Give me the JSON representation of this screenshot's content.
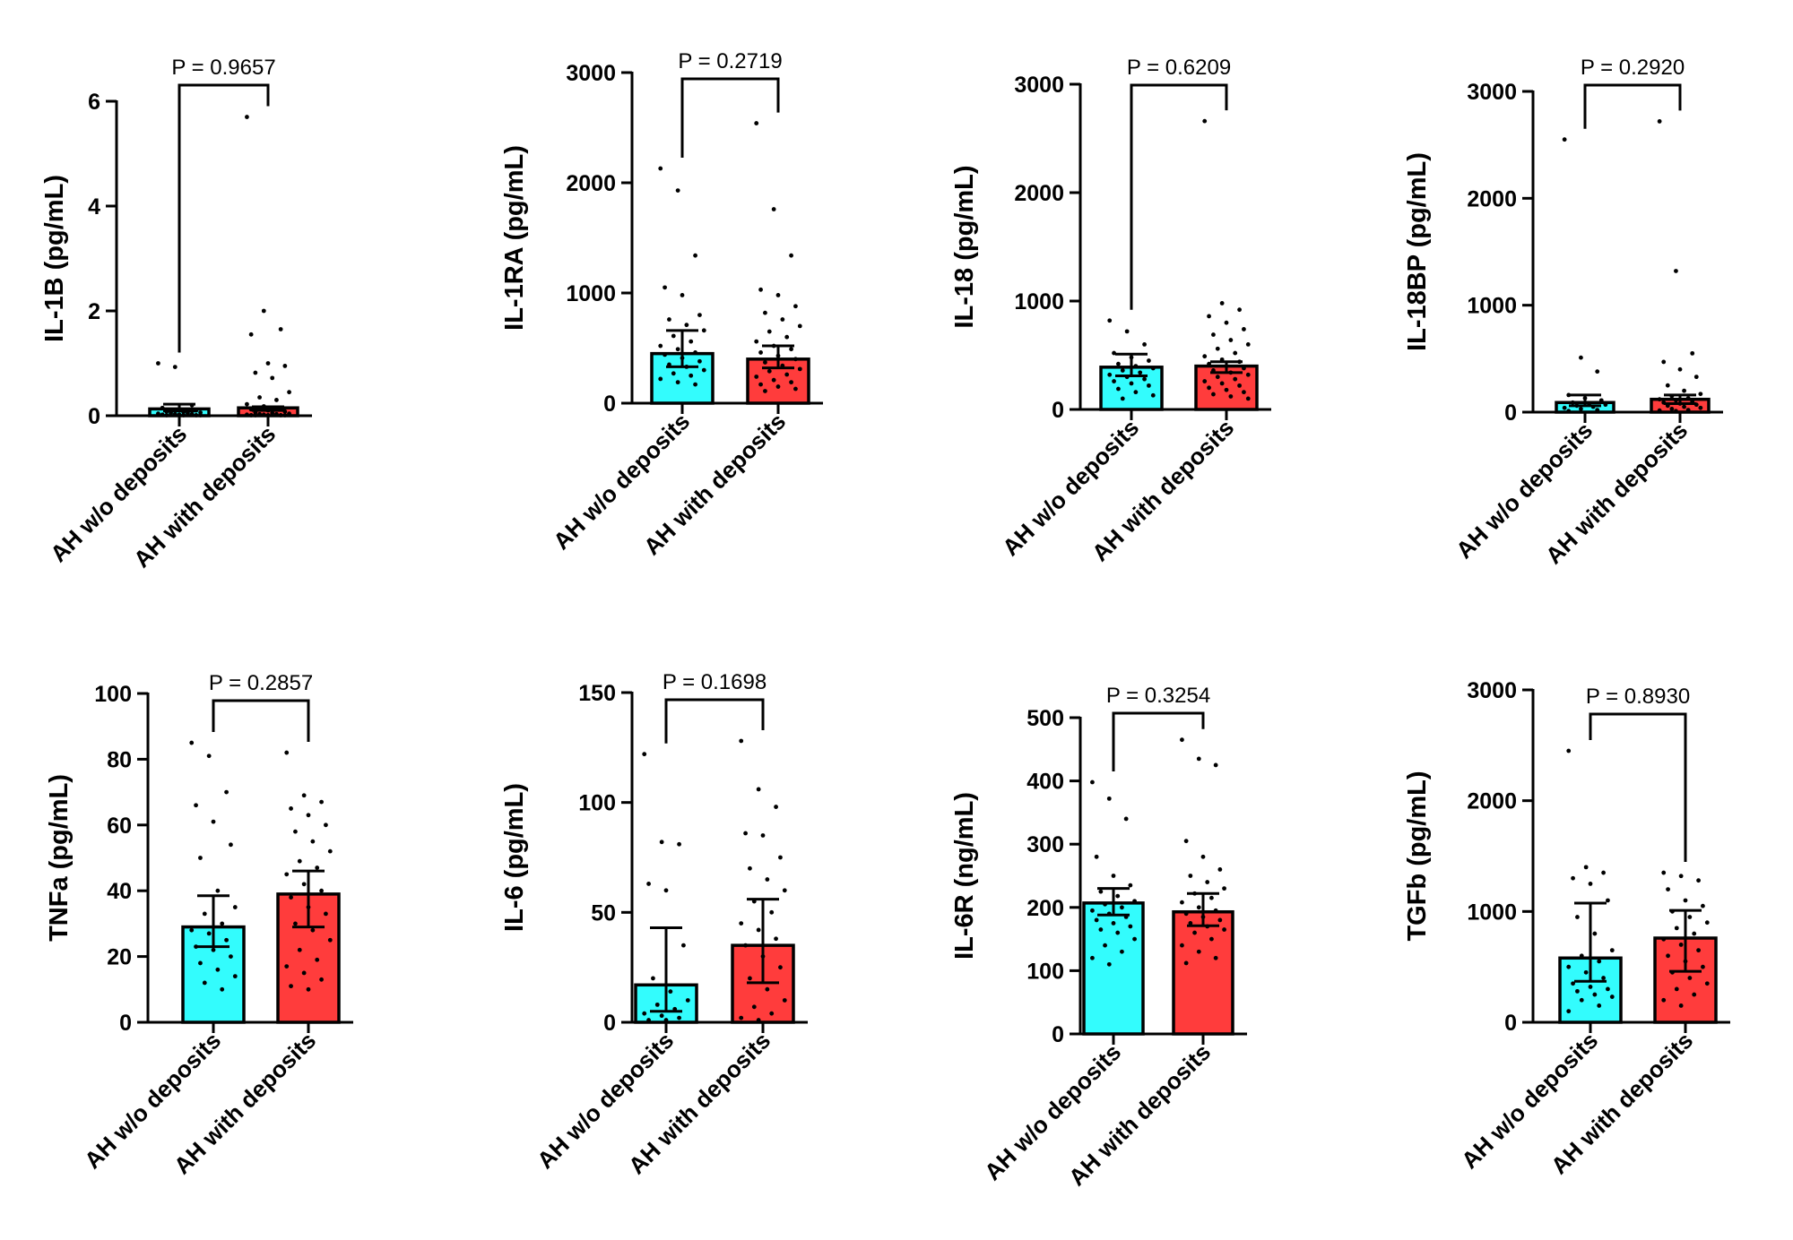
{
  "colors": {
    "without": "#33fcfd",
    "with": "#ff3c3c",
    "stroke": "#000000"
  },
  "categories": [
    "AH w/o deposits",
    "AH with deposits"
  ],
  "chart_data": [
    {
      "type": "bar",
      "title": "",
      "xlabel": "",
      "ylabel": "IL-1B (pg/mL)",
      "categories": [
        "AH w/o deposits",
        "AH with deposits"
      ],
      "values": [
        0.13,
        0.15
      ],
      "error_low": [
        0.09,
        0.1
      ],
      "error_high": [
        0.22,
        0.17
      ],
      "ylim": [
        0,
        6
      ],
      "yticks": [
        "0",
        "2",
        "4",
        "6"
      ],
      "ytick_values": [
        0,
        2,
        4,
        6
      ],
      "p_value": "P = 0.9657",
      "points": [
        [
          1.0,
          0.93,
          0.2,
          0.15,
          0.12,
          0.1,
          0.08,
          0.07,
          0.06,
          0.05,
          0.05,
          0.04,
          0.03,
          0.03,
          0.02,
          0.02,
          0.01,
          0.01,
          0.01,
          0.01
        ],
        [
          5.7,
          2.0,
          1.65,
          1.55,
          1.0,
          0.95,
          0.82,
          0.72,
          0.45,
          0.35,
          0.3,
          0.22,
          0.18,
          0.15,
          0.12,
          0.1,
          0.08,
          0.06,
          0.05,
          0.04,
          0.03,
          0.03,
          0.02,
          0.02,
          0.01,
          0.01,
          0.01,
          0.01,
          0.01
        ]
      ]
    },
    {
      "type": "bar",
      "title": "",
      "xlabel": "",
      "ylabel": "IL-1RA (pg/mL)",
      "categories": [
        "AH w/o deposits",
        "AH with deposits"
      ],
      "values": [
        450,
        400
      ],
      "error_low": [
        330,
        320
      ],
      "error_high": [
        660,
        520
      ],
      "ylim": [
        0,
        3000
      ],
      "yticks": [
        "0",
        "1000",
        "2000",
        "3000"
      ],
      "ytick_values": [
        0,
        1000,
        2000,
        3000
      ],
      "p_value": "P = 0.2719",
      "points": [
        [
          2130,
          1930,
          1340,
          1050,
          980,
          800,
          760,
          710,
          660,
          610,
          560,
          520,
          490,
          460,
          440,
          410,
          380,
          350,
          330,
          300,
          270,
          250,
          220,
          190,
          170
        ],
        [
          2540,
          1760,
          1340,
          1030,
          980,
          880,
          820,
          760,
          700,
          650,
          600,
          560,
          520,
          490,
          460,
          430,
          400,
          370,
          340,
          310,
          290,
          260,
          240,
          210,
          190,
          170,
          150,
          130,
          110
        ]
      ]
    },
    {
      "type": "bar",
      "title": "",
      "xlabel": "",
      "ylabel": "IL-18 (pg/mL)",
      "categories": [
        "AH w/o deposits",
        "AH with deposits"
      ],
      "values": [
        390,
        400
      ],
      "error_low": [
        310,
        340
      ],
      "error_high": [
        510,
        440
      ],
      "ylim": [
        0,
        3000
      ],
      "yticks": [
        "0",
        "1000",
        "2000",
        "3000"
      ],
      "ytick_values": [
        0,
        1000,
        2000,
        3000
      ],
      "p_value": "P = 0.6209",
      "points": [
        [
          820,
          720,
          600,
          520,
          480,
          450,
          420,
          400,
          380,
          360,
          340,
          320,
          300,
          280,
          260,
          240,
          220,
          190,
          160,
          130,
          100
        ],
        [
          2660,
          980,
          920,
          860,
          800,
          740,
          690,
          640,
          600,
          560,
          520,
          490,
          460,
          440,
          420,
          400,
          380,
          360,
          340,
          320,
          300,
          280,
          260,
          240,
          220,
          200,
          180,
          160,
          140,
          120,
          100
        ]
      ]
    },
    {
      "type": "bar",
      "title": "",
      "xlabel": "",
      "ylabel": "IL-18BP (pg/mL)",
      "categories": [
        "AH w/o deposits",
        "AH with deposits"
      ],
      "values": [
        90,
        120
      ],
      "error_low": [
        60,
        80
      ],
      "error_high": [
        160,
        160
      ],
      "ylim": [
        0,
        3000
      ],
      "yticks": [
        "0",
        "1000",
        "2000",
        "3000"
      ],
      "ytick_values": [
        0,
        1000,
        2000,
        3000
      ],
      "p_value": "P = 0.2920",
      "points": [
        [
          2550,
          510,
          380,
          160,
          130,
          110,
          90,
          80,
          70,
          60,
          50,
          40,
          30,
          20,
          10
        ],
        [
          2720,
          1320,
          550,
          470,
          400,
          330,
          250,
          200,
          170,
          150,
          130,
          120,
          110,
          100,
          90,
          80,
          70,
          60,
          50,
          40,
          30,
          20,
          15,
          10
        ]
      ]
    },
    {
      "type": "bar",
      "title": "",
      "xlabel": "",
      "ylabel": "TNFa (pg/mL)",
      "categories": [
        "AH w/o deposits",
        "AH with deposits"
      ],
      "values": [
        29,
        39
      ],
      "error_low": [
        23,
        29
      ],
      "error_high": [
        38.5,
        46
      ],
      "ylim": [
        0,
        100
      ],
      "yticks": [
        "0",
        "20",
        "40",
        "60",
        "80",
        "100"
      ],
      "ytick_values": [
        0,
        20,
        40,
        60,
        80,
        100
      ],
      "p_value": "P = 0.2857",
      "points": [
        [
          85,
          81,
          70,
          66,
          61,
          54,
          50,
          40,
          35,
          33,
          30,
          28,
          27,
          25,
          23,
          22,
          20,
          18,
          16,
          14,
          12,
          10
        ],
        [
          82,
          69,
          67,
          65,
          63,
          60,
          58,
          55,
          52,
          49,
          47,
          45,
          42,
          40,
          38,
          35,
          33,
          30,
          28,
          25,
          22,
          19,
          17,
          15,
          13,
          11,
          10
        ]
      ]
    },
    {
      "type": "bar",
      "title": "",
      "xlabel": "",
      "ylabel": "IL-6 (pg/mL)",
      "categories": [
        "AH w/o deposits",
        "AH with deposits"
      ],
      "values": [
        17,
        35
      ],
      "error_low": [
        5,
        18
      ],
      "error_high": [
        43,
        56
      ],
      "ylim": [
        0,
        150
      ],
      "yticks": [
        "0",
        "50",
        "100",
        "150"
      ],
      "ytick_values": [
        0,
        50,
        100,
        150
      ],
      "p_value": "P = 0.1698",
      "points": [
        [
          122,
          82,
          81,
          63,
          60,
          35,
          20,
          14,
          10,
          8,
          6,
          4,
          3,
          2,
          1,
          1
        ],
        [
          128,
          106,
          98,
          86,
          85,
          75,
          70,
          65,
          60,
          55,
          50,
          45,
          42,
          38,
          35,
          30,
          25,
          20,
          15,
          10,
          7,
          4,
          2,
          1
        ]
      ]
    },
    {
      "type": "bar",
      "title": "",
      "xlabel": "",
      "ylabel": "IL-6R (ng/mL)",
      "categories": [
        "AH w/o deposits",
        "AH with deposits"
      ],
      "values": [
        207,
        193
      ],
      "error_low": [
        188,
        171
      ],
      "error_high": [
        230,
        222
      ],
      "ylim": [
        0,
        500
      ],
      "yticks": [
        "0",
        "100",
        "200",
        "300",
        "400",
        "500"
      ],
      "ytick_values": [
        0,
        100,
        200,
        300,
        400,
        500
      ],
      "p_value": "P = 0.3254",
      "points": [
        [
          398,
          372,
          340,
          280,
          250,
          235,
          225,
          218,
          210,
          205,
          200,
          195,
          190,
          185,
          180,
          175,
          170,
          165,
          160,
          150,
          140,
          130,
          120,
          110
        ],
        [
          465,
          435,
          425,
          305,
          280,
          260,
          250,
          240,
          230,
          222,
          215,
          208,
          200,
          195,
          190,
          185,
          180,
          175,
          170,
          165,
          160,
          150,
          140,
          130,
          120,
          112
        ]
      ]
    },
    {
      "type": "bar",
      "title": "",
      "xlabel": "",
      "ylabel": "TGFb (pg/mL)",
      "categories": [
        "AH w/o deposits",
        "AH with deposits"
      ],
      "values": [
        580,
        760
      ],
      "error_low": [
        370,
        460
      ],
      "error_high": [
        1075,
        1010
      ],
      "ylim": [
        0,
        3000
      ],
      "yticks": [
        "0",
        "1000",
        "2000",
        "3000"
      ],
      "ytick_values": [
        0,
        1000,
        2000,
        3000
      ],
      "p_value": "P = 0.8930",
      "points": [
        [
          2450,
          1400,
          1350,
          1300,
          1250,
          1100,
          950,
          800,
          650,
          600,
          550,
          500,
          450,
          400,
          350,
          320,
          300,
          280,
          250,
          230,
          200,
          150,
          100
        ],
        [
          1350,
          1320,
          1280,
          1200,
          1100,
          1050,
          1000,
          950,
          900,
          850,
          800,
          750,
          700,
          650,
          600,
          550,
          500,
          450,
          400,
          350,
          300,
          250,
          200,
          150
        ]
      ]
    }
  ]
}
